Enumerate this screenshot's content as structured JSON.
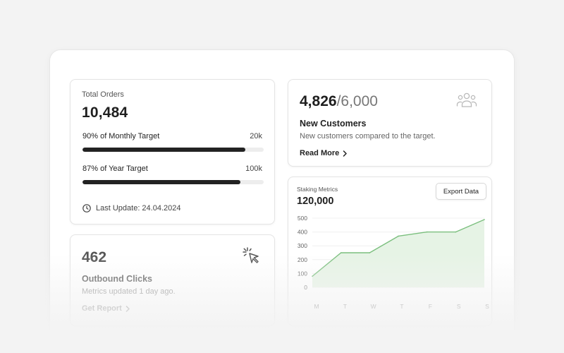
{
  "orders": {
    "label": "Total Orders",
    "value": "10,484",
    "monthly": {
      "label": "90% of Monthly Target",
      "target": "20k",
      "percent": 90
    },
    "yearly": {
      "label": "87% of Year Target",
      "target": "100k",
      "percent": 87
    },
    "last_update": "Last Update: 24.04.2024"
  },
  "customers": {
    "current": "4,826",
    "separator": "/",
    "target": "6,000",
    "title": "New Customers",
    "subtitle": "New customers compared to the target.",
    "link": "Read More"
  },
  "clicks": {
    "value": "462",
    "title": "Outbound Clicks",
    "subtitle": "Metrics updated 1 day ago.",
    "link": "Get Report"
  },
  "staking": {
    "label": "Staking Metrics",
    "value": "120,000",
    "export_label": "Export Data"
  },
  "chart_data": {
    "type": "area",
    "title": "Staking Metrics",
    "categories": [
      "M",
      "T",
      "W",
      "T",
      "F",
      "S",
      "S"
    ],
    "values": [
      80,
      250,
      250,
      370,
      400,
      400,
      490
    ],
    "ylim": [
      0,
      500
    ],
    "yticks": [
      0,
      100,
      200,
      300,
      400,
      500
    ],
    "grid": true,
    "line_color": "#7bbf7e",
    "fill_color": "#e6f3e5"
  }
}
